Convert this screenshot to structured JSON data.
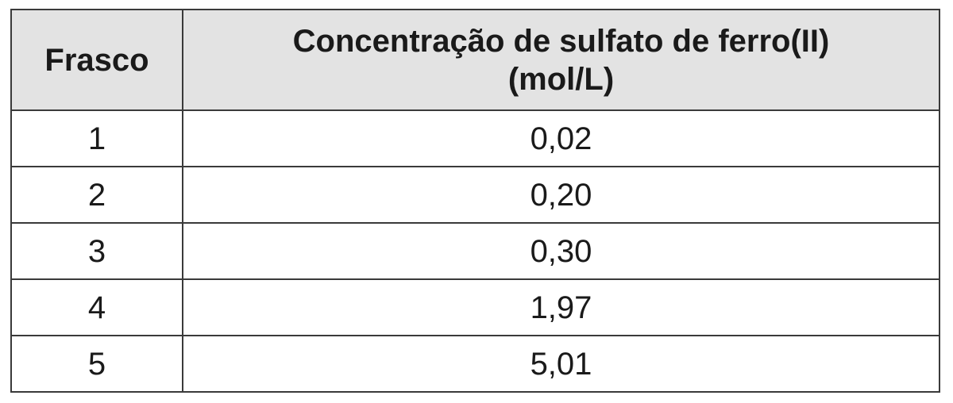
{
  "table": {
    "headers": {
      "frasco": "Frasco",
      "concentration_line1": "Concentração de sulfato de ferro(II)",
      "concentration_line2": "(mol/L)"
    },
    "rows": [
      {
        "frasco": "1",
        "concentration": "0,02"
      },
      {
        "frasco": "2",
        "concentration": "0,20"
      },
      {
        "frasco": "3",
        "concentration": "0,30"
      },
      {
        "frasco": "4",
        "concentration": "1,97"
      },
      {
        "frasco": "5",
        "concentration": "5,01"
      }
    ]
  },
  "colors": {
    "header_background": "#e3e3e3",
    "border": "#3a3a3a",
    "text": "#1a1a1a"
  }
}
